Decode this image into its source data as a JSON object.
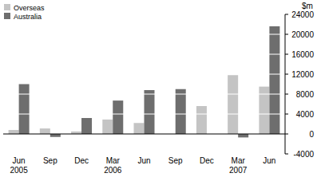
{
  "chart_data": {
    "type": "bar",
    "y_label": "$m",
    "categories": [
      "Jun 2005",
      "Sep",
      "Dec",
      "Mar 2006",
      "Jun",
      "Sep",
      "Dec",
      "Mar 2007",
      "Jun"
    ],
    "series": [
      {
        "name": "Overseas",
        "color": "#c4c4c4",
        "values": [
          800,
          1100,
          500,
          2900,
          2200,
          0,
          5600,
          11800,
          9500
        ]
      },
      {
        "name": "Australia",
        "color": "#6e6e6e",
        "values": [
          10000,
          -600,
          3200,
          6700,
          8800,
          9000,
          0,
          -700,
          21600
        ]
      }
    ],
    "ylim": [
      -4000,
      24000
    ],
    "yticks": [
      -4000,
      0,
      4000,
      8000,
      12000,
      16000,
      20000,
      24000
    ],
    "grid": true,
    "legend": "upper left"
  }
}
